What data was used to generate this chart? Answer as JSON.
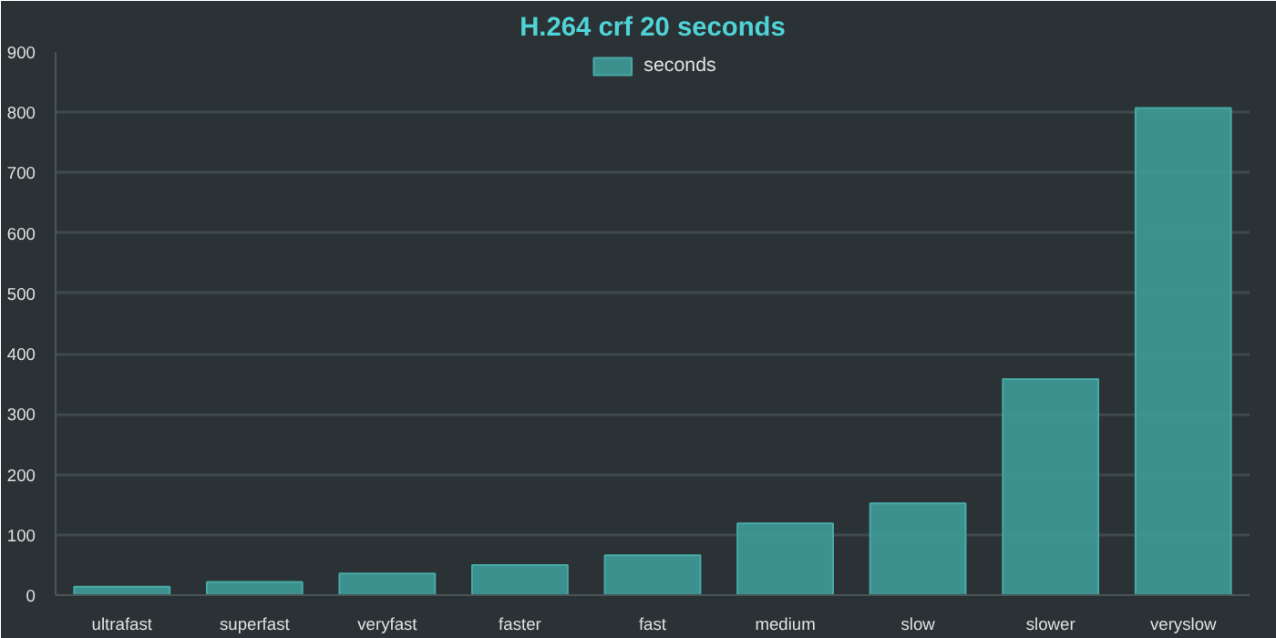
{
  "chart_data": {
    "type": "bar",
    "title": "H.264 crf 20 seconds",
    "categories": [
      "ultrafast",
      "superfast",
      "veryfast",
      "faster",
      "fast",
      "medium",
      "slow",
      "slower",
      "veryslow"
    ],
    "series": [
      {
        "name": "seconds",
        "color": "#3d9794",
        "values": [
          14,
          22,
          36,
          50,
          66,
          119,
          152,
          358,
          807
        ]
      }
    ],
    "ylim": [
      0,
      900
    ],
    "yticks": [
      0,
      100,
      200,
      300,
      400,
      500,
      600,
      700,
      800,
      900
    ],
    "grid": "y",
    "legend": "top"
  }
}
